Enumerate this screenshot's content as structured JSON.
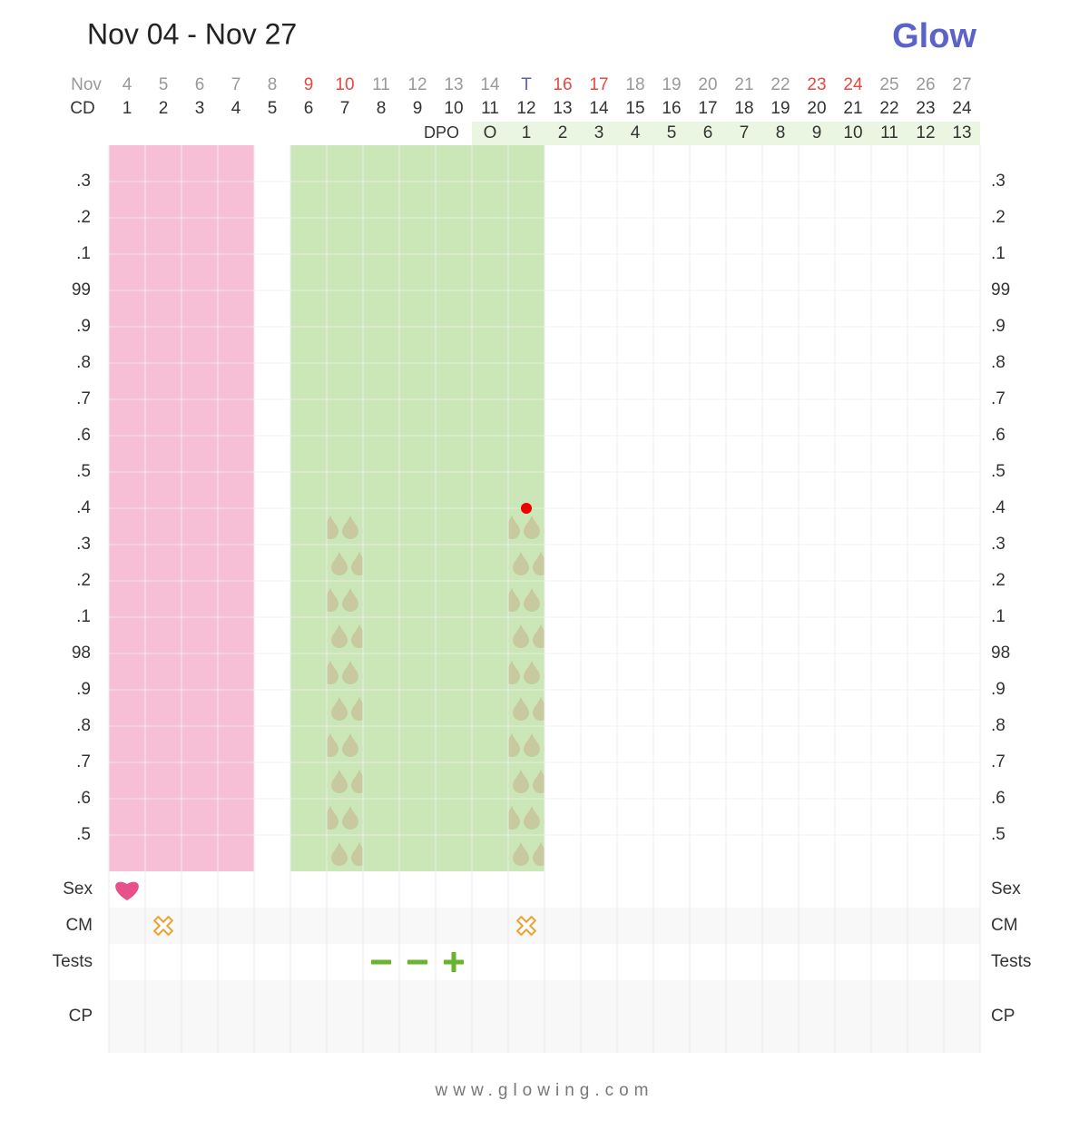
{
  "header": {
    "title": "Nov 04 - Nov 27",
    "logo": "Glow"
  },
  "days": {
    "label": "Nov",
    "values": [
      "4",
      "5",
      "6",
      "7",
      "8",
      "9",
      "10",
      "11",
      "12",
      "13",
      "14",
      "T",
      "16",
      "17",
      "18",
      "19",
      "20",
      "21",
      "22",
      "23",
      "24",
      "25",
      "26",
      "27"
    ],
    "colors": [
      "#999",
      "#999",
      "#999",
      "#999",
      "#999",
      "#e8473f",
      "#e8473f",
      "#999",
      "#999",
      "#999",
      "#999",
      "#5a5fc9",
      "#e8473f",
      "#e8473f",
      "#999",
      "#999",
      "#999",
      "#999",
      "#999",
      "#e8473f",
      "#e8473f",
      "#999",
      "#999",
      "#999"
    ]
  },
  "cd": {
    "label": "CD",
    "values": [
      1,
      2,
      3,
      4,
      5,
      6,
      7,
      8,
      9,
      10,
      11,
      12,
      13,
      14,
      15,
      16,
      17,
      18,
      19,
      20,
      21,
      22,
      23,
      24
    ]
  },
  "dpo": {
    "label": "DPO",
    "values": [
      "O",
      1,
      2,
      3,
      4,
      5,
      6,
      7,
      8,
      9,
      10,
      11,
      12,
      13
    ],
    "color": "#eaf6e2"
  },
  "temperature": {
    "ylim": [
      97.4,
      99.4
    ],
    "yticks": [
      {
        "value": 99.3,
        "label": ".3"
      },
      {
        "value": 99.2,
        "label": ".2"
      },
      {
        "value": 99.1,
        "label": ".1"
      },
      99,
      {
        "value": 98.9,
        "label": ".9"
      },
      {
        "value": 98.8,
        "label": ".8"
      },
      {
        "value": 98.7,
        "label": ".7"
      },
      {
        "value": 98.6,
        "label": ".6"
      },
      {
        "value": 98.5,
        "label": ".5"
      },
      {
        "value": 98.4,
        "label": ".4"
      },
      {
        "value": 98.3,
        "label": ".3"
      },
      {
        "value": 98.2,
        "label": ".2"
      },
      {
        "value": 98.1,
        "label": ".1"
      },
      98,
      {
        "value": 97.9,
        "label": ".9"
      },
      {
        "value": 97.8,
        "label": ".8"
      },
      {
        "value": 97.7,
        "label": ".7"
      },
      {
        "value": 97.6,
        "label": ".6"
      },
      {
        "value": 97.5,
        "label": ".5"
      }
    ],
    "points": [
      {
        "index": 11,
        "value": 98.4,
        "color": "#f00000"
      }
    ]
  },
  "phases": [
    {
      "start": 0,
      "end": 3,
      "color": "#f7bfd5"
    },
    {
      "start": 5,
      "end": 11,
      "color": "#cbe7b7"
    }
  ],
  "drops": [
    6,
    11
  ],
  "rows": {
    "sex": {
      "label": "Sex",
      "days": [
        0
      ]
    },
    "cm": {
      "label": "CM",
      "days": [
        1,
        11
      ]
    },
    "tests": {
      "label": "Tests",
      "results": [
        {
          "index": 7,
          "result": "negative"
        },
        {
          "index": 8,
          "result": "negative"
        },
        {
          "index": 9,
          "result": "positive"
        }
      ]
    },
    "cp": {
      "label": "CP"
    }
  },
  "footer": "www.glowing.com"
}
